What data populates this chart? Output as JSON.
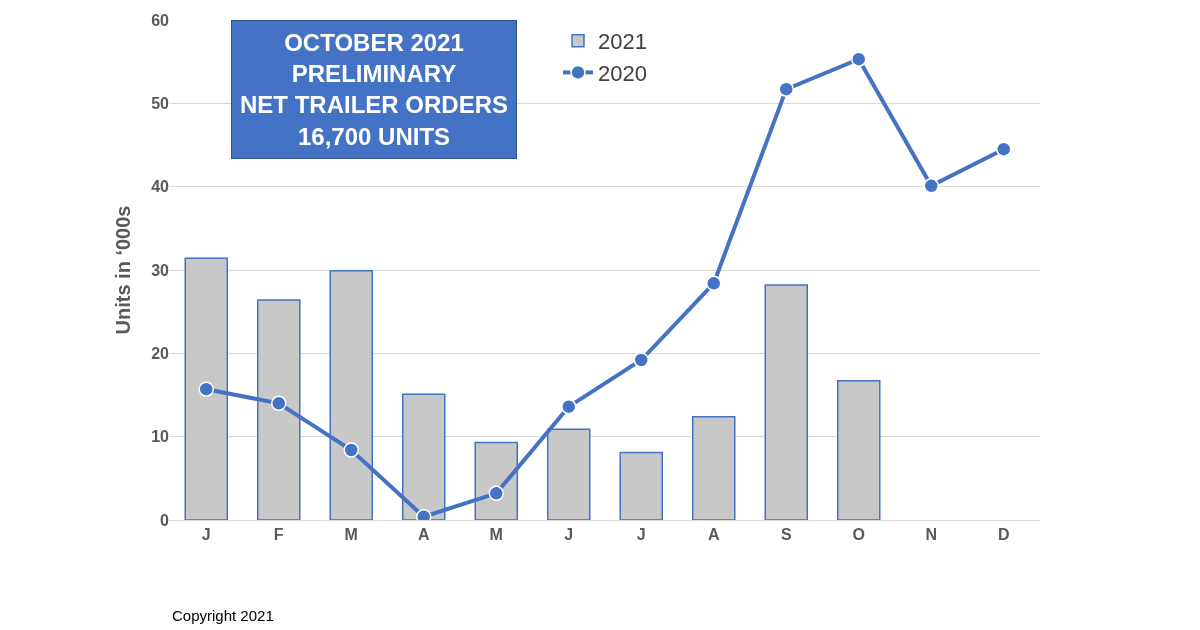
{
  "chart_data": {
    "type": "bar",
    "title": "OCTOBER 2021\nPRELIMINARY\nNET TRAILER ORDERS\n16,700 UNITS",
    "ylabel": "Units in ‘000s",
    "categories": [
      "J",
      "F",
      "M",
      "A",
      "M",
      "J",
      "J",
      "A",
      "S",
      "O",
      "N",
      "D"
    ],
    "series": [
      {
        "name": "2021",
        "color": "#c8c8c8",
        "values": [
          31.4,
          26.4,
          29.9,
          15.1,
          9.3,
          10.9,
          8.1,
          12.4,
          28.2,
          16.7,
          null,
          null
        ]
      },
      {
        "name": "2020",
        "type": "line",
        "color": "#4472c4",
        "marker": "circle",
        "values": [
          15.7,
          14.0,
          8.4,
          0.4,
          3.2,
          13.6,
          19.2,
          28.4,
          51.7,
          55.3,
          40.1,
          44.5
        ]
      }
    ],
    "ylim": [
      0,
      60
    ],
    "yticks": [
      0,
      10,
      20,
      30,
      40,
      50,
      60
    ],
    "grid": "y",
    "legend": "top",
    "annotations": [
      "Copyright 2021"
    ]
  }
}
